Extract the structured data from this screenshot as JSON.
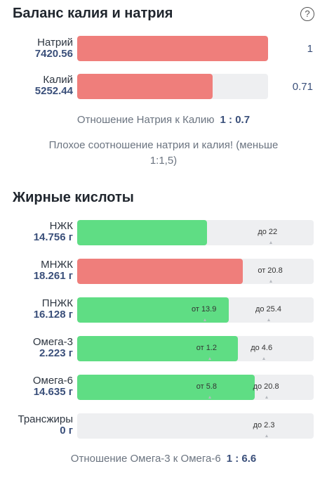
{
  "balance": {
    "title": "Баланс калия и натрия",
    "help_icon": "question-circle-icon",
    "sodium": {
      "name": "Натрий",
      "value": "7420.56",
      "fraction": 1.0,
      "side": "1",
      "color": "#ef7e7b"
    },
    "potassium": {
      "name": "Калий",
      "value": "5252.44",
      "fraction": 0.71,
      "side": "0.71",
      "color": "#ef7e7b"
    },
    "ratio_label": "Отношение Натрия к Калию",
    "ratio_value": "1 : 0.7",
    "warning_line1": "Плохое соотношение натрия и калия! (меньше",
    "warning_line2": "1:1,5)"
  },
  "fats": {
    "title": "Жирные кислоты",
    "rows": [
      {
        "name": "НЖК",
        "value": "14.756 г",
        "fill": 0.55,
        "color": "green",
        "markers": [
          {
            "text": "до 22",
            "pos": 0.82
          }
        ]
      },
      {
        "name": "МНЖК",
        "value": "18.261 г",
        "fill": 0.7,
        "color": "red",
        "markers": [
          {
            "text": "от 20.8",
            "pos": 0.82
          }
        ]
      },
      {
        "name": "ПНЖК",
        "value": "16.128 г",
        "fill": 0.64,
        "color": "green",
        "markers": [
          {
            "text": "от 13.9",
            "pos": 0.54
          },
          {
            "text": "до 25.4",
            "pos": 0.81
          }
        ]
      },
      {
        "name": "Омега-3",
        "value": "2.223 г",
        "fill": 0.68,
        "color": "green",
        "markers": [
          {
            "text": "от 1.2",
            "pos": 0.56
          },
          {
            "text": "до 4.6",
            "pos": 0.79
          }
        ]
      },
      {
        "name": "Омега-6",
        "value": "14.635 г",
        "fill": 0.75,
        "color": "green",
        "markers": [
          {
            "text": "от 5.8",
            "pos": 0.56
          },
          {
            "text": "до 20.8",
            "pos": 0.8
          }
        ]
      },
      {
        "name": "Трансжиры",
        "value": "0 г",
        "fill": 0.0,
        "color": "green",
        "markers": [
          {
            "text": "до 2.3",
            "pos": 0.8
          }
        ]
      }
    ],
    "ratio_label": "Отношение Омега-3 к Омега-6",
    "ratio_value": "1 : 6.6"
  }
}
